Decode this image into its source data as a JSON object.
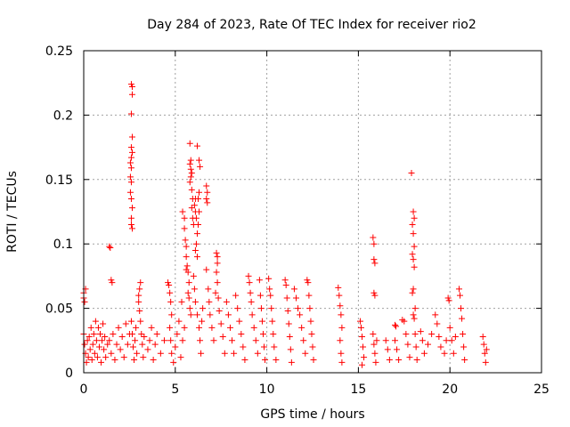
{
  "chart_data": {
    "type": "scatter",
    "title": "Day 284 of 2023, Rate Of TEC Index for receiver rio2",
    "xlabel": "GPS time / hours",
    "ylabel": "ROTI / TECUs",
    "xlim": [
      0,
      25
    ],
    "ylim": [
      0,
      0.25
    ],
    "xticks": [
      0,
      5,
      10,
      15,
      20,
      25
    ],
    "xtick_labels": [
      "0",
      "5",
      "10",
      "15",
      "20",
      "25"
    ],
    "yticks": [
      0,
      0.05,
      0.1,
      0.15,
      0.2,
      0.25
    ],
    "ytick_labels": [
      "0",
      "0.05",
      "0.1",
      "0.15",
      "0.2",
      "0.25"
    ],
    "grid": true,
    "marker": "+",
    "color": "#ff0000",
    "series": [
      {
        "name": "ROTI",
        "points": [
          [
            0.0,
            0.062
          ],
          [
            0.0,
            0.058
          ],
          [
            0.05,
            0.055
          ],
          [
            0.1,
            0.065
          ],
          [
            0.0,
            0.03
          ],
          [
            0.05,
            0.022
          ],
          [
            0.1,
            0.015
          ],
          [
            0.15,
            0.008
          ],
          [
            0.2,
            0.025
          ],
          [
            0.25,
            0.012
          ],
          [
            0.3,
            0.028
          ],
          [
            0.35,
            0.018
          ],
          [
            0.4,
            0.035
          ],
          [
            0.45,
            0.01
          ],
          [
            0.5,
            0.022
          ],
          [
            0.55,
            0.03
          ],
          [
            0.6,
            0.015
          ],
          [
            0.65,
            0.04
          ],
          [
            0.7,
            0.025
          ],
          [
            0.75,
            0.012
          ],
          [
            0.8,
            0.035
          ],
          [
            0.85,
            0.02
          ],
          [
            0.9,
            0.03
          ],
          [
            0.95,
            0.008
          ],
          [
            1.0,
            0.025
          ],
          [
            1.05,
            0.038
          ],
          [
            1.1,
            0.018
          ],
          [
            1.15,
            0.028
          ],
          [
            1.2,
            0.012
          ],
          [
            1.3,
            0.022
          ],
          [
            1.4,
            0.098
          ],
          [
            1.45,
            0.097
          ],
          [
            1.5,
            0.072
          ],
          [
            1.55,
            0.07
          ],
          [
            1.4,
            0.025
          ],
          [
            1.5,
            0.015
          ],
          [
            1.6,
            0.03
          ],
          [
            1.7,
            0.01
          ],
          [
            1.8,
            0.022
          ],
          [
            1.9,
            0.035
          ],
          [
            2.0,
            0.018
          ],
          [
            2.1,
            0.028
          ],
          [
            2.2,
            0.012
          ],
          [
            2.3,
            0.038
          ],
          [
            2.4,
            0.022
          ],
          [
            2.5,
            0.03
          ],
          [
            2.6,
            0.224
          ],
          [
            2.65,
            0.222
          ],
          [
            2.65,
            0.216
          ],
          [
            2.6,
            0.201
          ],
          [
            2.65,
            0.183
          ],
          [
            2.6,
            0.175
          ],
          [
            2.65,
            0.171
          ],
          [
            2.6,
            0.167
          ],
          [
            2.55,
            0.163
          ],
          [
            2.6,
            0.159
          ],
          [
            2.55,
            0.152
          ],
          [
            2.6,
            0.148
          ],
          [
            2.55,
            0.14
          ],
          [
            2.6,
            0.135
          ],
          [
            2.65,
            0.128
          ],
          [
            2.6,
            0.12
          ],
          [
            2.6,
            0.115
          ],
          [
            2.65,
            0.112
          ],
          [
            2.6,
            0.04
          ],
          [
            2.65,
            0.03
          ],
          [
            2.7,
            0.02
          ],
          [
            2.75,
            0.01
          ],
          [
            2.8,
            0.025
          ],
          [
            2.85,
            0.035
          ],
          [
            2.9,
            0.015
          ],
          [
            3.0,
            0.06
          ],
          [
            3.05,
            0.065
          ],
          [
            3.1,
            0.07
          ],
          [
            3.0,
            0.055
          ],
          [
            3.05,
            0.048
          ],
          [
            3.1,
            0.04
          ],
          [
            3.15,
            0.03
          ],
          [
            3.2,
            0.022
          ],
          [
            3.25,
            0.012
          ],
          [
            3.3,
            0.028
          ],
          [
            3.5,
            0.018
          ],
          [
            3.6,
            0.025
          ],
          [
            3.7,
            0.035
          ],
          [
            3.8,
            0.01
          ],
          [
            3.9,
            0.022
          ],
          [
            4.0,
            0.03
          ],
          [
            4.2,
            0.015
          ],
          [
            4.4,
            0.025
          ],
          [
            4.6,
            0.07
          ],
          [
            4.65,
            0.068
          ],
          [
            4.7,
            0.062
          ],
          [
            4.75,
            0.055
          ],
          [
            4.8,
            0.045
          ],
          [
            4.7,
            0.035
          ],
          [
            4.75,
            0.025
          ],
          [
            4.8,
            0.015
          ],
          [
            4.9,
            0.008
          ],
          [
            5.0,
            0.02
          ],
          [
            5.1,
            0.03
          ],
          [
            5.2,
            0.04
          ],
          [
            5.3,
            0.012
          ],
          [
            5.35,
            0.055
          ],
          [
            5.4,
            0.025
          ],
          [
            5.5,
            0.035
          ],
          [
            5.4,
            0.125
          ],
          [
            5.5,
            0.12
          ],
          [
            5.5,
            0.112
          ],
          [
            5.55,
            0.103
          ],
          [
            5.6,
            0.098
          ],
          [
            5.6,
            0.09
          ],
          [
            5.65,
            0.083
          ],
          [
            5.6,
            0.08
          ],
          [
            5.7,
            0.078
          ],
          [
            5.75,
            0.07
          ],
          [
            5.7,
            0.062
          ],
          [
            5.75,
            0.058
          ],
          [
            5.8,
            0.05
          ],
          [
            5.85,
            0.045
          ],
          [
            5.8,
            0.178
          ],
          [
            5.85,
            0.165
          ],
          [
            5.8,
            0.162
          ],
          [
            5.85,
            0.158
          ],
          [
            5.9,
            0.155
          ],
          [
            5.85,
            0.152
          ],
          [
            5.8,
            0.148
          ],
          [
            5.9,
            0.142
          ],
          [
            5.95,
            0.135
          ],
          [
            5.9,
            0.128
          ],
          [
            5.95,
            0.12
          ],
          [
            6.0,
            0.115
          ],
          [
            6.05,
            0.13
          ],
          [
            6.1,
            0.135
          ],
          [
            6.1,
            0.125
          ],
          [
            6.15,
            0.12
          ],
          [
            6.2,
            0.108
          ],
          [
            6.15,
            0.1
          ],
          [
            6.1,
            0.095
          ],
          [
            6.2,
            0.09
          ],
          [
            6.2,
            0.176
          ],
          [
            6.3,
            0.165
          ],
          [
            6.35,
            0.16
          ],
          [
            6.3,
            0.14
          ],
          [
            6.25,
            0.135
          ],
          [
            6.3,
            0.125
          ],
          [
            6.25,
            0.115
          ],
          [
            6.0,
            0.075
          ],
          [
            6.05,
            0.065
          ],
          [
            6.1,
            0.055
          ],
          [
            6.2,
            0.045
          ],
          [
            6.3,
            0.035
          ],
          [
            6.35,
            0.025
          ],
          [
            6.4,
            0.015
          ],
          [
            6.45,
            0.04
          ],
          [
            6.5,
            0.05
          ],
          [
            6.7,
            0.145
          ],
          [
            6.75,
            0.14
          ],
          [
            6.7,
            0.135
          ],
          [
            6.75,
            0.132
          ],
          [
            6.7,
            0.08
          ],
          [
            6.8,
            0.065
          ],
          [
            6.85,
            0.055
          ],
          [
            6.9,
            0.045
          ],
          [
            7.0,
            0.035
          ],
          [
            7.1,
            0.025
          ],
          [
            7.2,
            0.062
          ],
          [
            7.25,
            0.093
          ],
          [
            7.3,
            0.09
          ],
          [
            7.3,
            0.085
          ],
          [
            7.25,
            0.078
          ],
          [
            7.3,
            0.07
          ],
          [
            7.35,
            0.058
          ],
          [
            7.4,
            0.048
          ],
          [
            7.5,
            0.038
          ],
          [
            7.6,
            0.028
          ],
          [
            7.7,
            0.015
          ],
          [
            7.8,
            0.055
          ],
          [
            7.9,
            0.045
          ],
          [
            8.0,
            0.035
          ],
          [
            8.1,
            0.025
          ],
          [
            8.2,
            0.015
          ],
          [
            8.3,
            0.06
          ],
          [
            8.4,
            0.05
          ],
          [
            8.5,
            0.04
          ],
          [
            8.6,
            0.03
          ],
          [
            8.7,
            0.02
          ],
          [
            8.8,
            0.01
          ],
          [
            9.0,
            0.075
          ],
          [
            9.05,
            0.07
          ],
          [
            9.1,
            0.062
          ],
          [
            9.15,
            0.055
          ],
          [
            9.2,
            0.045
          ],
          [
            9.3,
            0.035
          ],
          [
            9.4,
            0.025
          ],
          [
            9.5,
            0.015
          ],
          [
            9.6,
            0.072
          ],
          [
            9.65,
            0.06
          ],
          [
            9.7,
            0.05
          ],
          [
            9.75,
            0.04
          ],
          [
            9.8,
            0.03
          ],
          [
            9.85,
            0.02
          ],
          [
            9.9,
            0.01
          ],
          [
            10.1,
            0.073
          ],
          [
            10.15,
            0.065
          ],
          [
            10.2,
            0.06
          ],
          [
            10.25,
            0.05
          ],
          [
            10.3,
            0.04
          ],
          [
            10.35,
            0.03
          ],
          [
            10.4,
            0.02
          ],
          [
            10.5,
            0.01
          ],
          [
            11.0,
            0.072
          ],
          [
            11.05,
            0.068
          ],
          [
            11.1,
            0.058
          ],
          [
            11.15,
            0.048
          ],
          [
            11.2,
            0.038
          ],
          [
            11.25,
            0.028
          ],
          [
            11.3,
            0.018
          ],
          [
            11.35,
            0.008
          ],
          [
            11.5,
            0.065
          ],
          [
            11.6,
            0.058
          ],
          [
            11.7,
            0.05
          ],
          [
            11.8,
            0.045
          ],
          [
            11.9,
            0.035
          ],
          [
            12.0,
            0.025
          ],
          [
            12.1,
            0.015
          ],
          [
            12.2,
            0.072
          ],
          [
            12.25,
            0.07
          ],
          [
            12.3,
            0.06
          ],
          [
            12.35,
            0.05
          ],
          [
            12.4,
            0.04
          ],
          [
            12.45,
            0.03
          ],
          [
            12.5,
            0.02
          ],
          [
            12.55,
            0.01
          ],
          [
            13.9,
            0.066
          ],
          [
            13.95,
            0.06
          ],
          [
            14.0,
            0.052
          ],
          [
            14.05,
            0.045
          ],
          [
            14.1,
            0.035
          ],
          [
            14.0,
            0.025
          ],
          [
            14.05,
            0.015
          ],
          [
            14.1,
            0.008
          ],
          [
            15.1,
            0.04
          ],
          [
            15.15,
            0.035
          ],
          [
            15.2,
            0.028
          ],
          [
            15.25,
            0.02
          ],
          [
            15.3,
            0.012
          ],
          [
            15.2,
            0.006
          ],
          [
            15.8,
            0.105
          ],
          [
            15.85,
            0.1
          ],
          [
            15.85,
            0.088
          ],
          [
            15.9,
            0.085
          ],
          [
            15.85,
            0.062
          ],
          [
            15.9,
            0.06
          ],
          [
            15.8,
            0.03
          ],
          [
            15.85,
            0.022
          ],
          [
            15.9,
            0.015
          ],
          [
            15.95,
            0.008
          ],
          [
            16.0,
            0.025
          ],
          [
            16.5,
            0.025
          ],
          [
            16.6,
            0.018
          ],
          [
            16.7,
            0.01
          ],
          [
            17.0,
            0.037
          ],
          [
            17.05,
            0.036
          ],
          [
            17.0,
            0.025
          ],
          [
            17.1,
            0.018
          ],
          [
            17.2,
            0.01
          ],
          [
            17.4,
            0.041
          ],
          [
            17.5,
            0.04
          ],
          [
            17.6,
            0.03
          ],
          [
            17.7,
            0.022
          ],
          [
            17.8,
            0.012
          ],
          [
            17.9,
            0.155
          ],
          [
            18.0,
            0.125
          ],
          [
            18.05,
            0.12
          ],
          [
            17.95,
            0.115
          ],
          [
            18.0,
            0.108
          ],
          [
            18.05,
            0.098
          ],
          [
            17.95,
            0.092
          ],
          [
            18.0,
            0.088
          ],
          [
            18.05,
            0.082
          ],
          [
            18.0,
            0.065
          ],
          [
            17.95,
            0.062
          ],
          [
            18.1,
            0.05
          ],
          [
            18.0,
            0.045
          ],
          [
            18.05,
            0.042
          ],
          [
            18.1,
            0.03
          ],
          [
            18.15,
            0.02
          ],
          [
            18.2,
            0.01
          ],
          [
            18.4,
            0.032
          ],
          [
            18.5,
            0.025
          ],
          [
            18.6,
            0.015
          ],
          [
            18.8,
            0.022
          ],
          [
            19.0,
            0.03
          ],
          [
            19.2,
            0.045
          ],
          [
            19.3,
            0.038
          ],
          [
            19.4,
            0.028
          ],
          [
            19.5,
            0.02
          ],
          [
            19.7,
            0.015
          ],
          [
            19.8,
            0.025
          ],
          [
            19.9,
            0.058
          ],
          [
            19.95,
            0.056
          ],
          [
            20.0,
            0.035
          ],
          [
            20.1,
            0.025
          ],
          [
            20.2,
            0.015
          ],
          [
            20.3,
            0.028
          ],
          [
            20.5,
            0.065
          ],
          [
            20.55,
            0.06
          ],
          [
            20.6,
            0.05
          ],
          [
            20.65,
            0.042
          ],
          [
            20.7,
            0.03
          ],
          [
            20.75,
            0.02
          ],
          [
            20.8,
            0.01
          ],
          [
            21.8,
            0.028
          ],
          [
            21.85,
            0.022
          ],
          [
            21.9,
            0.015
          ],
          [
            21.95,
            0.008
          ],
          [
            22.0,
            0.018
          ]
        ]
      }
    ]
  }
}
